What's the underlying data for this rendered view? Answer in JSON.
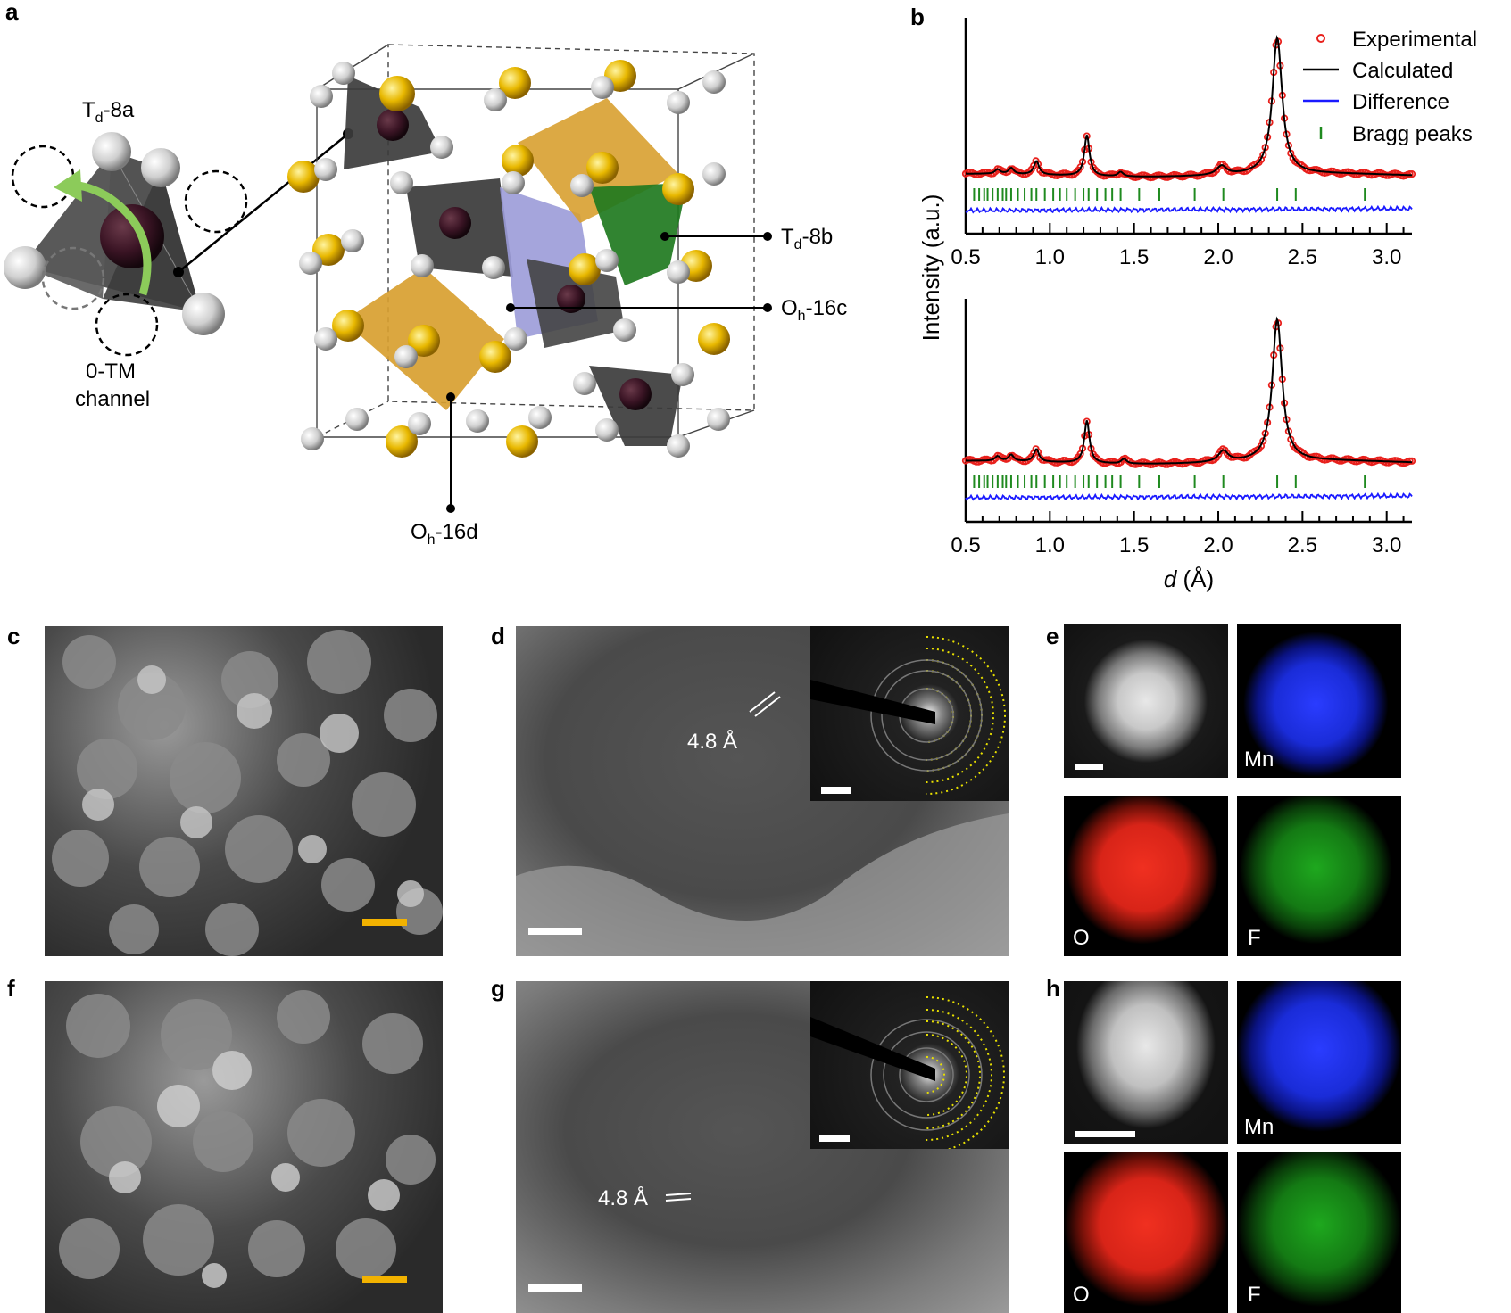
{
  "panels": {
    "a": "a",
    "b": "b",
    "c": "c",
    "d": "d",
    "e": "e",
    "f": "f",
    "g": "g",
    "h": "h"
  },
  "structure": {
    "td8a_main": "T",
    "td8a_sub": "d",
    "td8a_suffix": "-8a",
    "channel_line1": "0-TM",
    "channel_line2": "channel",
    "td8b_main": "T",
    "td8b_sub": "d",
    "td8b_suffix": "-8b",
    "oh16c_main": "O",
    "oh16c_sub": "h",
    "oh16c_suffix": "-16c",
    "oh16d_main": "O",
    "oh16d_sub": "h",
    "oh16d_suffix": "-16d"
  },
  "legend": {
    "experimental": "Experimental",
    "calculated": "Calculated",
    "difference": "Difference",
    "bragg": "Bragg peaks"
  },
  "colors": {
    "experimental": "#e8201c",
    "calculated": "#000000",
    "difference": "#1a1aff",
    "bragg": "#1f8a1f",
    "scalebar_sem": "#f2b200",
    "mn_map": "#1a2cff",
    "o_map": "#e6281c",
    "f_map": "#1ea81e"
  },
  "micrographs": {
    "d_spacing_d": "4.8 Å",
    "d_spacing_g": "4.8 Å",
    "eds_mn": "Mn",
    "eds_o": "O",
    "eds_f": "F"
  },
  "chart_data": [
    {
      "type": "line",
      "panel": "b-top",
      "ylabel": "Intensity (a.u.)",
      "xlabel": "d (Å)",
      "xlim": [
        0.5,
        3.15
      ],
      "xticks": [
        "0.5",
        "1.0",
        "1.5",
        "2.0",
        "2.5",
        "3.0"
      ],
      "peaks": [
        {
          "d": 0.69,
          "height": 0.03
        },
        {
          "d": 0.77,
          "height": 0.04
        },
        {
          "d": 0.92,
          "height": 0.09
        },
        {
          "d": 1.22,
          "height": 0.27
        },
        {
          "d": 1.42,
          "height": 0.03
        },
        {
          "d": 2.02,
          "height": 0.06
        },
        {
          "d": 2.35,
          "height": 0.9
        }
      ],
      "bragg_positions": [
        0.55,
        0.58,
        0.61,
        0.63,
        0.66,
        0.69,
        0.72,
        0.74,
        0.77,
        0.81,
        0.85,
        0.89,
        0.92,
        0.97,
        1.02,
        1.06,
        1.1,
        1.15,
        1.2,
        1.23,
        1.28,
        1.33,
        1.37,
        1.42,
        1.53,
        1.65,
        1.86,
        2.03,
        2.35,
        2.46,
        2.87
      ],
      "series": [
        {
          "name": "Experimental"
        },
        {
          "name": "Calculated"
        },
        {
          "name": "Difference"
        },
        {
          "name": "Bragg peaks"
        }
      ]
    },
    {
      "type": "line",
      "panel": "b-bottom",
      "xlabel": "d (Å)",
      "xlim": [
        0.5,
        3.15
      ],
      "xticks": [
        "0.5",
        "1.0",
        "1.5",
        "2.0",
        "2.5",
        "3.0"
      ],
      "peaks": [
        {
          "d": 0.69,
          "height": 0.03
        },
        {
          "d": 0.77,
          "height": 0.04
        },
        {
          "d": 0.92,
          "height": 0.08
        },
        {
          "d": 1.22,
          "height": 0.27
        },
        {
          "d": 1.44,
          "height": 0.03
        },
        {
          "d": 2.03,
          "height": 0.07
        },
        {
          "d": 2.35,
          "height": 0.9
        }
      ],
      "bragg_positions": [
        0.55,
        0.58,
        0.61,
        0.63,
        0.66,
        0.69,
        0.72,
        0.74,
        0.77,
        0.81,
        0.85,
        0.89,
        0.92,
        0.97,
        1.02,
        1.06,
        1.1,
        1.15,
        1.2,
        1.23,
        1.28,
        1.33,
        1.37,
        1.42,
        1.53,
        1.65,
        1.86,
        2.03,
        2.35,
        2.46,
        2.87
      ]
    }
  ]
}
